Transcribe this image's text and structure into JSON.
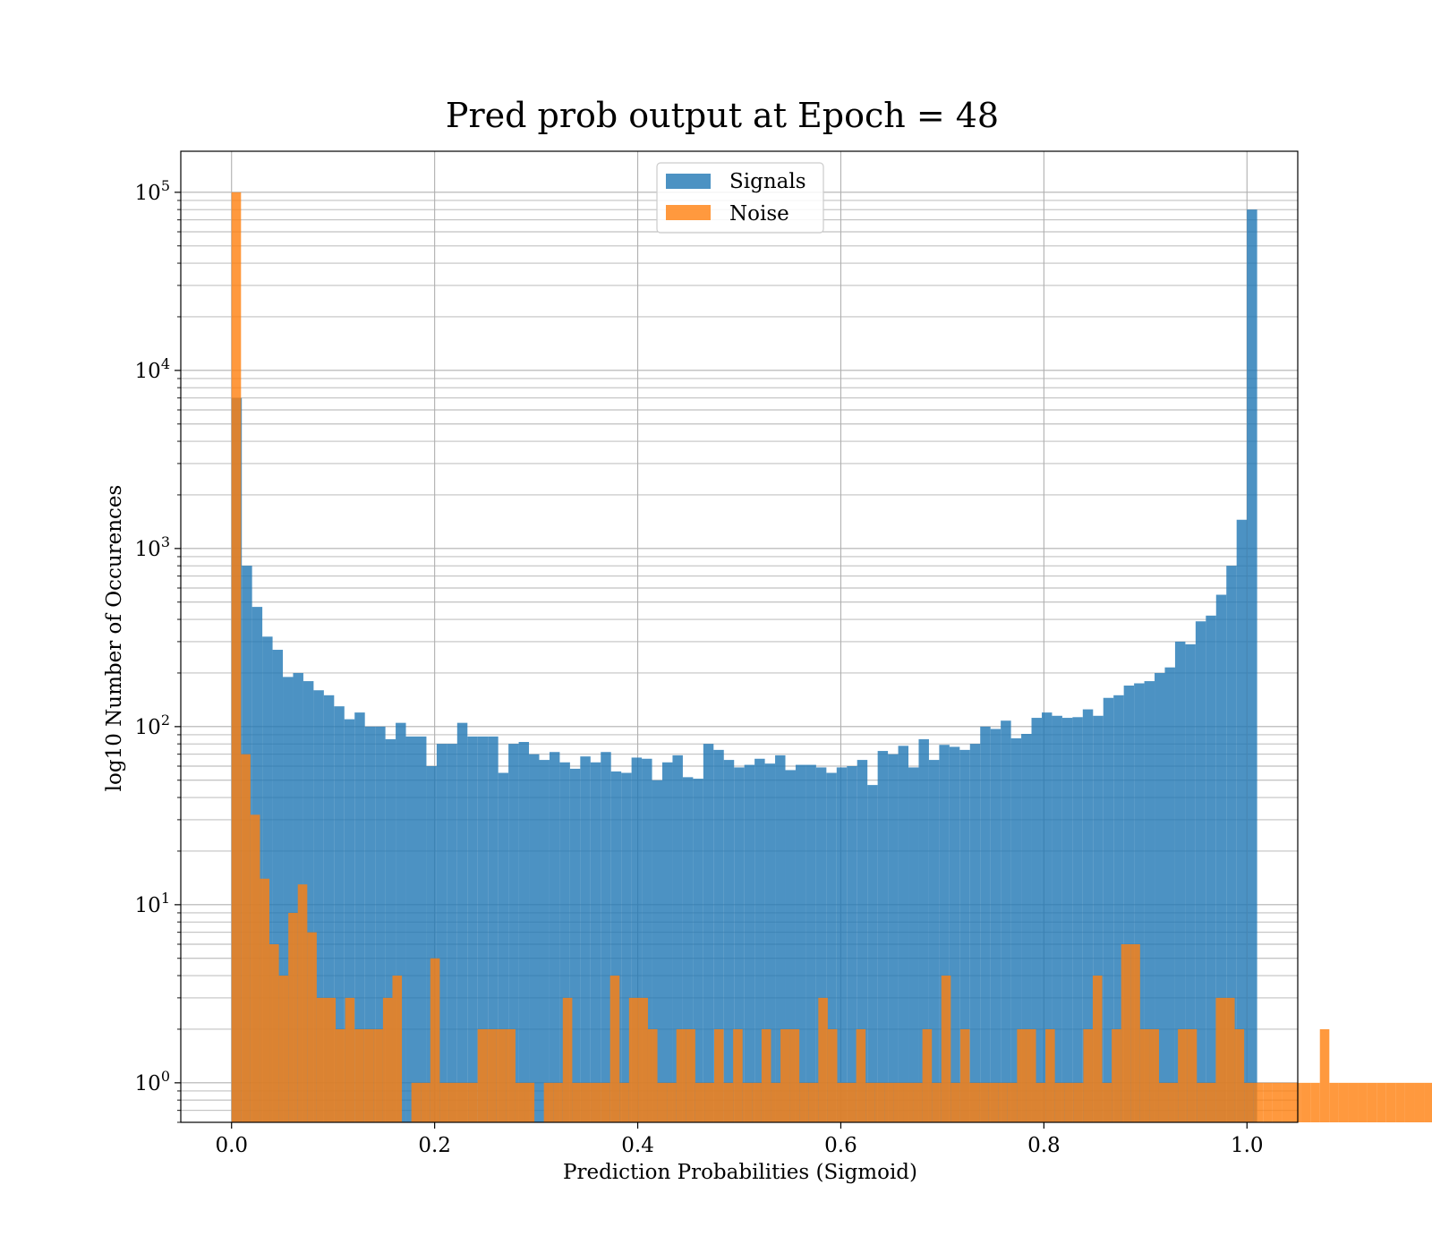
{
  "chart_data": {
    "type": "bar",
    "title": "Pred prob output at Epoch = 48",
    "xlabel": "Prediction Probabilities (Sigmoid)",
    "ylabel": "log10 Number of Occurences",
    "y_scale": "log",
    "xlim": [
      -0.05,
      1.05
    ],
    "ylim": [
      0.6,
      170000
    ],
    "grid": true,
    "legend_position": "top-center",
    "x_ticks": [
      0.0,
      0.2,
      0.4,
      0.6,
      0.8,
      1.0
    ],
    "x_tick_labels": [
      "0.0",
      "0.2",
      "0.4",
      "0.6",
      "0.8",
      "1.0"
    ],
    "y_ticks": [
      1,
      10,
      100,
      1000,
      10000,
      100000
    ],
    "y_tick_labels": [
      {
        "base": "10",
        "exp": "0"
      },
      {
        "base": "10",
        "exp": "1"
      },
      {
        "base": "10",
        "exp": "2"
      },
      {
        "base": "10",
        "exp": "3"
      },
      {
        "base": "10",
        "exp": "4"
      },
      {
        "base": "10",
        "exp": "5"
      }
    ],
    "series": [
      {
        "name": "Signals",
        "color": "#1f77b4",
        "bin_start": 0.0,
        "bin_width": 0.0101,
        "values": [
          7000,
          800,
          470,
          320,
          270,
          190,
          200,
          180,
          160,
          150,
          130,
          110,
          120,
          100,
          100,
          85,
          105,
          88,
          88,
          60,
          80,
          80,
          105,
          88,
          88,
          88,
          55,
          80,
          82,
          70,
          65,
          72,
          63,
          58,
          68,
          63,
          72,
          56,
          55,
          67,
          66,
          50,
          63,
          69,
          52,
          51,
          80,
          74,
          65,
          59,
          61,
          66,
          62,
          69,
          57,
          61,
          61,
          59,
          55,
          59,
          60,
          65,
          47,
          73,
          70,
          78,
          59,
          85,
          65,
          79,
          77,
          74,
          80,
          100,
          97,
          108,
          86,
          91,
          112,
          120,
          115,
          112,
          113,
          125,
          115,
          145,
          150,
          170,
          175,
          180,
          200,
          215,
          300,
          290,
          390,
          420,
          550,
          800,
          1450,
          80000
        ]
      },
      {
        "name": "Noise",
        "color": "#ff7f0e",
        "bin_start": 0.0,
        "bin_width": 0.00932,
        "values": [
          100000,
          70,
          32,
          14,
          6,
          4,
          9,
          13,
          7,
          3,
          3,
          2,
          3,
          2,
          2,
          2,
          3,
          4,
          0,
          1,
          1,
          5,
          1,
          1,
          1,
          1,
          2,
          2,
          2,
          2,
          1,
          1,
          0,
          1,
          1,
          3,
          1,
          1,
          1,
          1,
          4,
          1,
          3,
          3,
          2,
          1,
          1,
          2,
          2,
          1,
          1,
          2,
          1,
          2,
          1,
          1,
          2,
          1,
          2,
          2,
          1,
          1,
          3,
          2,
          1,
          1,
          2,
          1,
          1,
          1,
          1,
          1,
          1,
          2,
          1,
          4,
          1,
          2,
          1,
          1,
          1,
          1,
          1,
          2,
          2,
          1,
          2,
          1,
          1,
          1,
          2,
          4,
          1,
          2,
          6,
          6,
          2,
          2,
          1,
          1,
          2,
          2,
          1,
          1,
          3,
          3,
          2,
          1,
          1,
          1,
          1,
          1,
          1,
          1,
          1,
          2,
          1,
          1,
          1,
          1,
          1,
          1,
          1,
          1,
          1,
          1,
          1,
          1,
          1,
          1,
          1,
          1,
          2,
          1,
          1,
          1,
          1,
          1,
          1,
          1,
          1,
          1
        ]
      }
    ]
  }
}
